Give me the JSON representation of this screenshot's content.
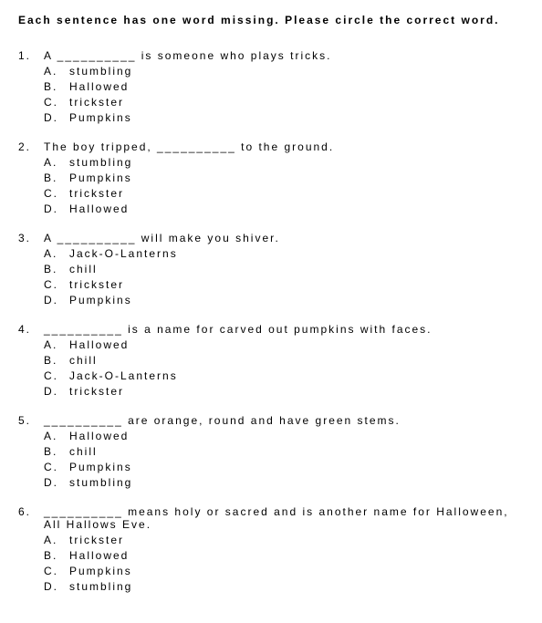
{
  "instructions": "Each sentence has one word missing.  Please circle the correct word.",
  "questions": [
    {
      "num": "1.",
      "stem": "A  __________  is someone who plays tricks.",
      "options": [
        {
          "letter": "A.",
          "text": "stumbling"
        },
        {
          "letter": "B.",
          "text": "Hallowed"
        },
        {
          "letter": "C.",
          "text": "trickster"
        },
        {
          "letter": "D.",
          "text": "Pumpkins"
        }
      ]
    },
    {
      "num": "2.",
      "stem": "The boy tripped,  __________  to the ground.",
      "options": [
        {
          "letter": "A.",
          "text": "stumbling"
        },
        {
          "letter": "B.",
          "text": "Pumpkins"
        },
        {
          "letter": "C.",
          "text": "trickster"
        },
        {
          "letter": "D.",
          "text": "Hallowed"
        }
      ]
    },
    {
      "num": "3.",
      "stem": "A  __________  will make you shiver.",
      "options": [
        {
          "letter": "A.",
          "text": "Jack-O-Lanterns"
        },
        {
          "letter": "B.",
          "text": "chill"
        },
        {
          "letter": "C.",
          "text": "trickster"
        },
        {
          "letter": "D.",
          "text": "Pumpkins"
        }
      ]
    },
    {
      "num": "4.",
      "stem": "__________  is a name for carved out pumpkins with faces.",
      "options": [
        {
          "letter": "A.",
          "text": "Hallowed"
        },
        {
          "letter": "B.",
          "text": "chill"
        },
        {
          "letter": "C.",
          "text": "Jack-O-Lanterns"
        },
        {
          "letter": "D.",
          "text": "trickster"
        }
      ]
    },
    {
      "num": "5.",
      "stem": "__________  are orange, round and have green stems.",
      "options": [
        {
          "letter": "A.",
          "text": "Hallowed"
        },
        {
          "letter": "B.",
          "text": "chill"
        },
        {
          "letter": "C.",
          "text": "Pumpkins"
        },
        {
          "letter": "D.",
          "text": "stumbling"
        }
      ]
    },
    {
      "num": "6.",
      "stem": "__________  means holy or sacred and is another name for Halloween, All Hallows Eve.",
      "options": [
        {
          "letter": "A.",
          "text": "trickster"
        },
        {
          "letter": "B.",
          "text": "Hallowed"
        },
        {
          "letter": "C.",
          "text": "Pumpkins"
        },
        {
          "letter": "D.",
          "text": "stumbling"
        }
      ]
    }
  ]
}
